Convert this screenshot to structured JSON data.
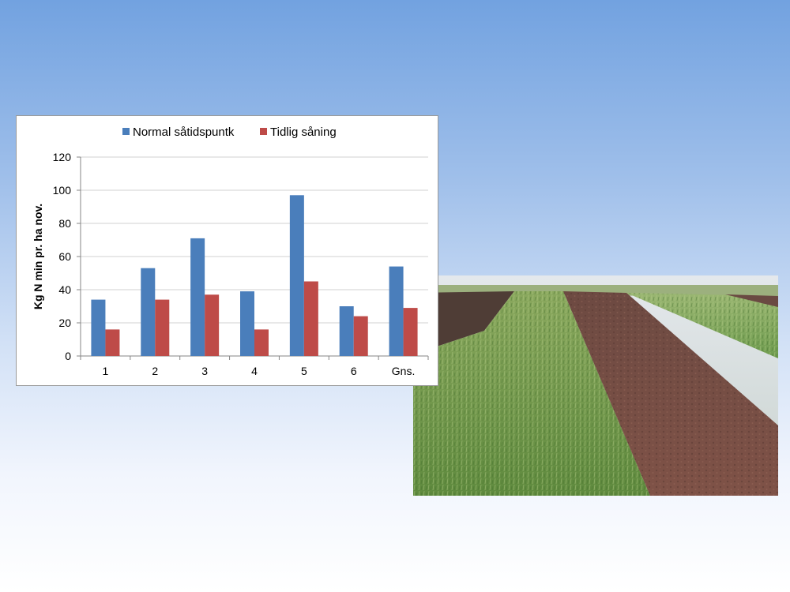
{
  "chart_data": {
    "type": "bar",
    "categories": [
      "1",
      "2",
      "3",
      "4",
      "5",
      "6",
      "Gns."
    ],
    "series": [
      {
        "name": "Normal såtidspuntk",
        "color": "#4a7ebb",
        "values": [
          34,
          53,
          71,
          39,
          97,
          30,
          54
        ]
      },
      {
        "name": "Tidlig såning",
        "color": "#be4b48",
        "values": [
          16,
          34,
          37,
          16,
          45,
          24,
          29
        ]
      }
    ],
    "title": "",
    "xlabel": "",
    "ylabel": "Kg N min pr. ha nov.",
    "ylim": [
      0,
      120
    ],
    "yticks": [
      0,
      20,
      40,
      60,
      80,
      100,
      120
    ],
    "grid": true,
    "legend_position": "top"
  },
  "photo": {
    "icon": "field-photo-icon",
    "colors": {
      "sky": "#d9dfe6",
      "soil_dark": "#4a3a33",
      "soil_red": "#7d5046",
      "crop": "#6f9a52",
      "crop_light": "#9bbb6d"
    }
  }
}
